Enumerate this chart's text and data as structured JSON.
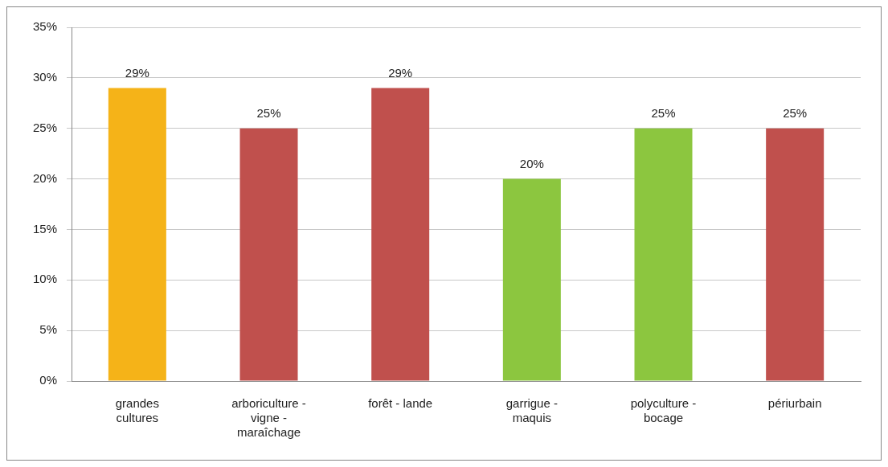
{
  "chart_data": {
    "type": "bar",
    "categories": [
      "grandes cultures",
      "arboriculture - vigne - maraîchage",
      "forêt - lande",
      "garrigue - maquis",
      "polyculture - bocage",
      "périurbain"
    ],
    "values": [
      29,
      25,
      29,
      20,
      25,
      25
    ],
    "colors": [
      "#f5b318",
      "#c0504d",
      "#c0504d",
      "#8cc63f",
      "#8cc63f",
      "#c0504d"
    ],
    "value_labels": [
      "29%",
      "25%",
      "29%",
      "20%",
      "25%",
      "25%"
    ],
    "ylim": [
      0,
      35
    ],
    "yticks": [
      {
        "value": 0,
        "label": "0%"
      },
      {
        "value": 5,
        "label": "5%"
      },
      {
        "value": 10,
        "label": "10%"
      },
      {
        "value": 15,
        "label": "15%"
      },
      {
        "value": 20,
        "label": "20%"
      },
      {
        "value": 25,
        "label": "25%"
      },
      {
        "value": 30,
        "label": "30%"
      },
      {
        "value": 35,
        "label": "35%"
      }
    ],
    "grid": "y",
    "legend": false
  }
}
